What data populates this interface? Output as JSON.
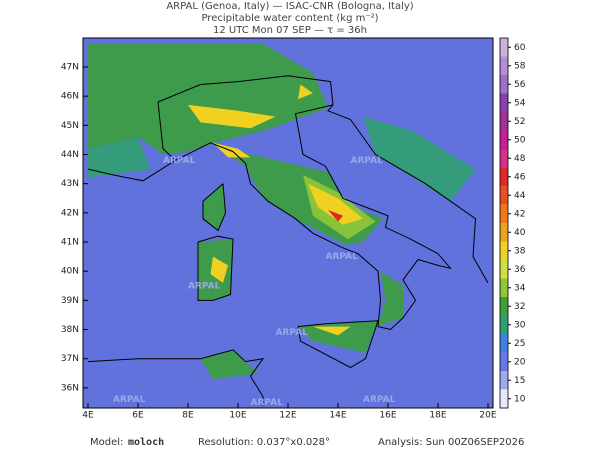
{
  "header": {
    "title_lines": [
      "ARPAL (Genoa, Italy)  —  ISAC-CNR (Bologna, Italy)",
      "Precipitable water content (kg m⁻²)",
      "12 UTC Mon 07 SEP  —  τ = 36h"
    ]
  },
  "map": {
    "lon_labels": [
      "4E",
      "6E",
      "8E",
      "10E",
      "12E",
      "14E",
      "16E",
      "18E",
      "20E"
    ],
    "lat_labels": [
      "47N",
      "46N",
      "45N",
      "44N",
      "43N",
      "42N",
      "41N",
      "40N",
      "39N",
      "38N",
      "37N",
      "36N"
    ],
    "watermark": "ARPAL"
  },
  "colorbar": {
    "ticks": [
      60,
      58,
      56,
      54,
      52,
      50,
      48,
      46,
      44,
      42,
      40,
      38,
      36,
      34,
      32,
      30,
      25,
      20,
      15,
      10
    ],
    "colors": [
      "#c9b3e0",
      "#b48fd6",
      "#a070c8",
      "#8a3fb0",
      "#a0309a",
      "#c0209a",
      "#d6308a",
      "#e02828",
      "#e85020",
      "#f07818",
      "#f0a020",
      "#f0d020",
      "#d0e040",
      "#90c838",
      "#3ca03c",
      "#30a070",
      "#4080e0",
      "#6878e8",
      "#a0a8f0",
      "#e8e8f8"
    ]
  },
  "footer": {
    "model_label": "Model:",
    "model": "moloch",
    "resolution": "Resolution: 0.037°x0.028°",
    "analysis": "Analysis: Sun 00Z06SEP2026"
  }
}
